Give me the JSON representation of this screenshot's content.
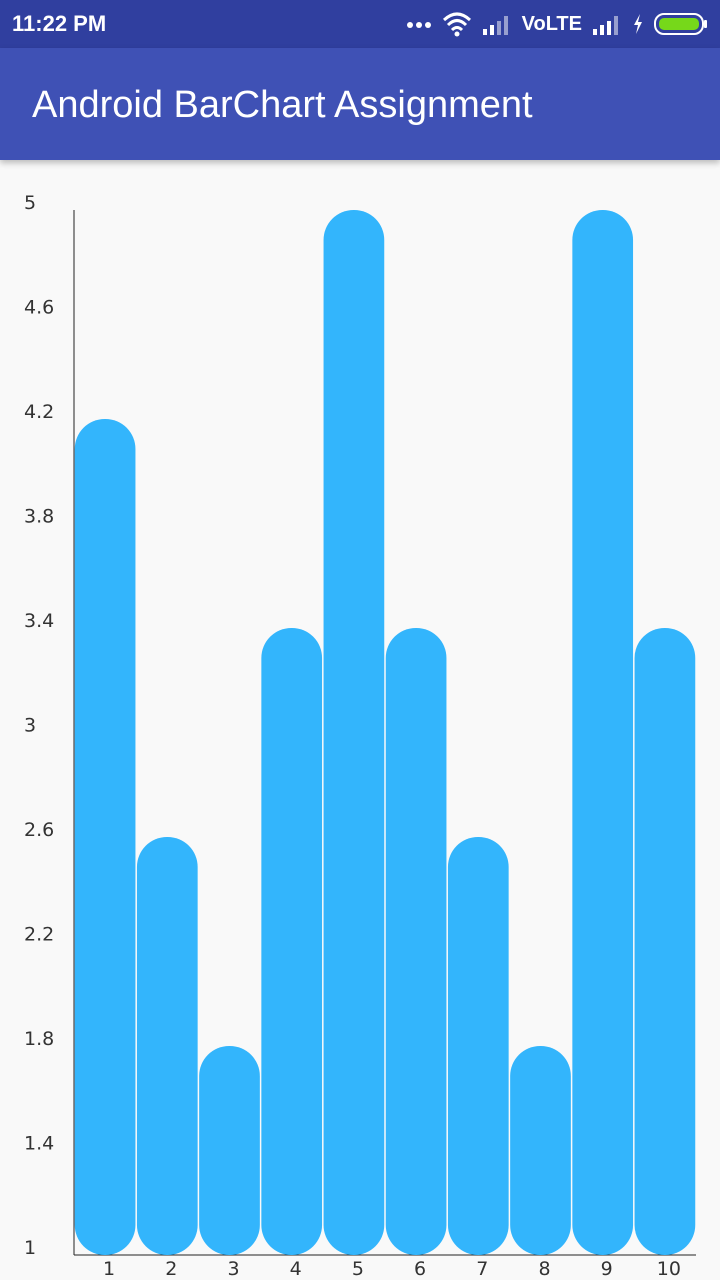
{
  "status_bar": {
    "time": "11:22 PM",
    "network_label": "VoLTE",
    "icons": [
      "more-dots-icon",
      "wifi-icon",
      "signal-icon",
      "signal-icon",
      "charging-icon",
      "battery-icon"
    ]
  },
  "app_bar": {
    "title": "Android BarChart Assignment",
    "color": "#3f51b5",
    "status_color": "#303f9f"
  },
  "chart_data": {
    "type": "bar",
    "categories": [
      "1",
      "2",
      "3",
      "4",
      "5",
      "6",
      "7",
      "8",
      "9",
      "10"
    ],
    "values": [
      4.2,
      2.6,
      1.8,
      3.4,
      5,
      3.4,
      2.6,
      1.8,
      5,
      3.4
    ],
    "ylim": [
      1,
      5
    ],
    "yticks": [
      "1",
      "1.4",
      "1.8",
      "2.2",
      "2.6",
      "3",
      "3.4",
      "3.8",
      "4.2",
      "4.6",
      "5"
    ],
    "title": "",
    "xlabel": "",
    "ylabel": "",
    "grid": false,
    "legend": "none",
    "bar_color": "#33b5fc",
    "bar_style": "rounded"
  }
}
